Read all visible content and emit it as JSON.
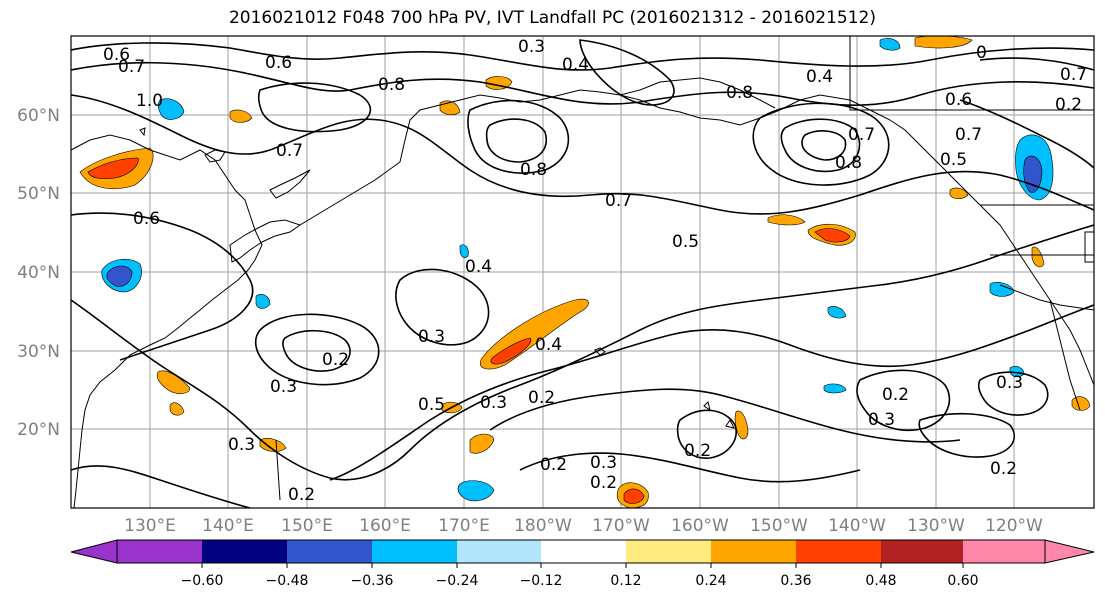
{
  "title": "2016021012 F048 700 hPa PV, IVT Landfall PC (2016021312 - 2016021512)",
  "axes": {
    "lat_ticks": [
      "60°N",
      "50°N",
      "40°N",
      "30°N",
      "20°N"
    ],
    "lon_ticks": [
      "130°E",
      "140°E",
      "150°E",
      "160°E",
      "170°E",
      "180°W",
      "170°W",
      "160°W",
      "150°W",
      "140°W",
      "130°W",
      "120°W"
    ]
  },
  "colorbar": {
    "levels": [
      "−0.60",
      "−0.48",
      "−0.36",
      "−0.24",
      "−0.12",
      "0.12",
      "0.24",
      "0.36",
      "0.48",
      "0.60"
    ],
    "colors": [
      "#9933cc",
      "#000080",
      "#3355cc",
      "#00bfff",
      "#b3e5fc",
      "#ffffff",
      "#ffeb80",
      "#ffa500",
      "#ff4000",
      "#b22222",
      "#ff88aa"
    ]
  },
  "contour_labels": [
    {
      "text": "0.6"
    },
    {
      "text": "0.7"
    },
    {
      "text": "0.6"
    },
    {
      "text": "1.0"
    },
    {
      "text": "0.7"
    },
    {
      "text": "0.6"
    },
    {
      "text": "0.3"
    },
    {
      "text": "0.4"
    },
    {
      "text": "0.8"
    },
    {
      "text": "0.4"
    },
    {
      "text": "0.7"
    },
    {
      "text": "0.5"
    },
    {
      "text": "0.8"
    },
    {
      "text": "0.7"
    },
    {
      "text": "0.4"
    },
    {
      "text": "0.3"
    },
    {
      "text": "0.2"
    },
    {
      "text": "0.3"
    },
    {
      "text": "0.4"
    },
    {
      "text": "0.5"
    },
    {
      "text": "0.3"
    },
    {
      "text": "0.2"
    },
    {
      "text": "0.2"
    },
    {
      "text": "0.3"
    },
    {
      "text": "0.2"
    },
    {
      "text": "0.2"
    },
    {
      "text": "0.2"
    },
    {
      "text": "0.3"
    },
    {
      "text": "0.2"
    },
    {
      "text": "0.3"
    },
    {
      "text": "0.8"
    },
    {
      "text": "0.7"
    },
    {
      "text": "0.6"
    },
    {
      "text": "0.5"
    },
    {
      "text": "0.2"
    },
    {
      "text": "0.3"
    },
    {
      "text": "0.2"
    },
    {
      "text": "0.7"
    },
    {
      "text": "0.8"
    },
    {
      "text": "0"
    }
  ]
}
